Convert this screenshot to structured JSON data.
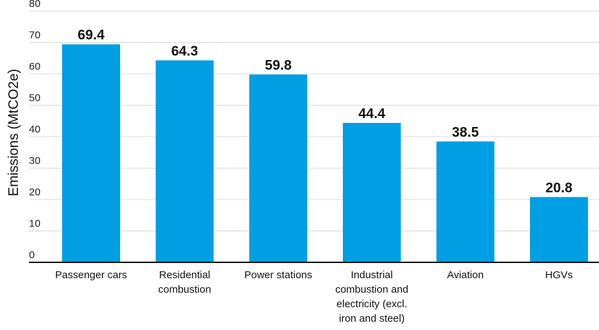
{
  "chart_data": {
    "type": "bar",
    "categories": [
      [
        "Passenger cars"
      ],
      [
        "Residential",
        "combustion"
      ],
      [
        "Power stations"
      ],
      [
        "Industrial",
        "combustion and",
        "electricity (excl.",
        "iron and steel)"
      ],
      [
        "Aviation"
      ],
      [
        "HGVs"
      ]
    ],
    "values": [
      69.4,
      64.3,
      59.8,
      44.4,
      38.5,
      20.8
    ],
    "data_labels": [
      "69.4",
      "64.3",
      "59.8",
      "44.4",
      "38.5",
      "20.8"
    ],
    "y_ticks": [
      "0",
      "10",
      "20",
      "30",
      "40",
      "50",
      "60",
      "70",
      "80"
    ],
    "ylabel": "Emissions (MtCO2e)",
    "xlabel": "",
    "title": "",
    "ylim": [
      0,
      80
    ],
    "grid": true,
    "colors": {
      "bar": "#009fe3",
      "grid": "#d9d9d9",
      "axis": "#111111"
    }
  }
}
